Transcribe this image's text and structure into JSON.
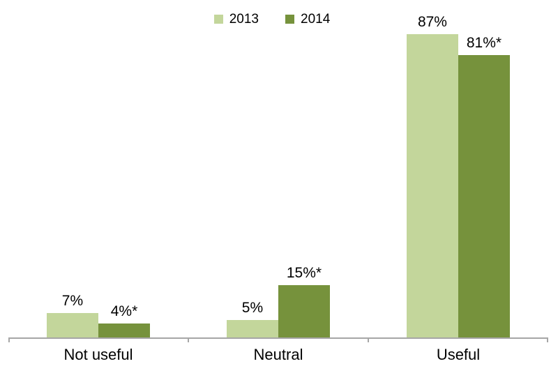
{
  "chart_data": {
    "type": "bar",
    "title": "",
    "xlabel": "",
    "ylabel": "",
    "categories": [
      "Not useful",
      "Neutral",
      "Useful"
    ],
    "series": [
      {
        "name": "2013",
        "color": "#c3d69b",
        "values": [
          7,
          5,
          87
        ],
        "labels": [
          "7%",
          "5%",
          "87%"
        ]
      },
      {
        "name": "2014",
        "color": "#76923c",
        "values": [
          4,
          15,
          81
        ],
        "labels": [
          "4%*",
          "15%*",
          "81%*"
        ]
      }
    ],
    "ylim": [
      0,
      100
    ],
    "value_unit": "%",
    "grid": false,
    "y_axis_visible": false,
    "legend_position": "top",
    "axis_color": "#a6a6a6",
    "label_color": "#000000",
    "annotation_note": "* appears on 2014 data labels"
  }
}
